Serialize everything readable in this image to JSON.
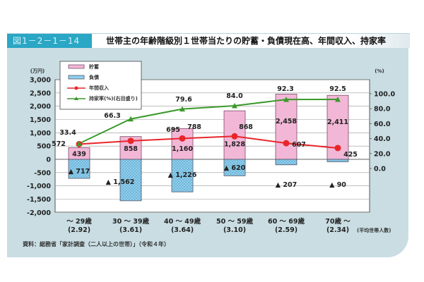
{
  "figure": {
    "number": "図1－2－1－14",
    "title": "世帯主の年齢階級別１世帯当たりの貯蓄・負債現在高、年間収入、持家率",
    "source": "資料：総務省「家計調査（二人以上の世帯）」（令和４年）"
  },
  "colors": {
    "header_accent": "#2aa7c4",
    "panel_bg": "#c9dde3",
    "savings_fill": "#f2b7d6",
    "savings_border": "#7a4a66",
    "debt_fill": "#8fd0ee",
    "income_line": "#e8262a",
    "homeownership_line": "#3a9a2a"
  },
  "chart_data": {
    "type": "bar",
    "title": "世帯主の年齢階級別１世帯当たりの貯蓄・負債現在高、年間収入、持家率",
    "categories": [
      "～ 29歳",
      "30 ～ 39歳",
      "40 ～ 49歳",
      "50 ～ 59歳",
      "60 ～ 69歳",
      "70歳 ～"
    ],
    "category_sublabels": [
      "(2.92)",
      "(3.61)",
      "(3.64)",
      "(3.10)",
      "(2.59)",
      "(2.34)"
    ],
    "category_sublabel_note": "(平均世帯人数)",
    "left_axis": {
      "label": "(万円)",
      "ylim": [
        -2000,
        3000
      ],
      "ticks": [
        "3,000",
        "2,500",
        "2,000",
        "1,500",
        "1,000",
        "500",
        "0",
        "-500",
        "-1,000",
        "-1,500",
        "-2,000"
      ]
    },
    "right_axis": {
      "label": "(%)",
      "ylim": [
        0,
        100
      ],
      "ticks": [
        "100.0",
        "80.0",
        "60.0",
        "40.0",
        "20.0",
        "0.0"
      ]
    },
    "series": [
      {
        "name": "貯蓄",
        "type": "bar",
        "axis": "left",
        "values": [
          439,
          858,
          1160,
          1828,
          2458,
          2411
        ],
        "labels": [
          "439",
          "858",
          "1,160",
          "1,828",
          "2,458",
          "2,411"
        ]
      },
      {
        "name": "負債",
        "type": "bar",
        "axis": "left",
        "values": [
          -717,
          -1562,
          -1226,
          -620,
          -207,
          -90
        ],
        "labels": [
          "▲ 717",
          "▲ 1,562",
          "▲ 1,226",
          "▲ 620",
          "▲ 207",
          "▲ 90"
        ]
      },
      {
        "name": "年間収入",
        "type": "line",
        "axis": "left",
        "values": [
          572,
          695,
          788,
          868,
          607,
          425
        ],
        "labels": [
          "572",
          "695",
          "788",
          "868",
          "607",
          "425"
        ]
      },
      {
        "name": "持家率(%)(右目盛り)",
        "type": "line",
        "axis": "right",
        "values": [
          33.4,
          66.3,
          79.6,
          84.0,
          92.3,
          92.5
        ],
        "labels": [
          "33.4",
          "66.3",
          "79.6",
          "84.0",
          "92.3",
          "92.5"
        ]
      }
    ],
    "legend": [
      "貯蓄",
      "負債",
      "年間収入",
      "持家率(%)(右目盛り)"
    ],
    "legend_position": "top-left inside plot",
    "grid": true
  }
}
